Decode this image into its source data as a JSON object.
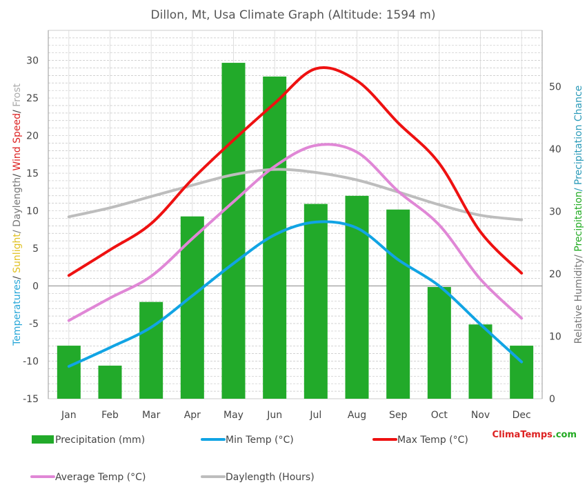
{
  "chart_data": {
    "type": "bar+line",
    "title": "Dillon, Mt, Usa Climate Graph (Altitude: 1594 m)",
    "categories": [
      "Jan",
      "Feb",
      "Mar",
      "Apr",
      "May",
      "Jun",
      "Jul",
      "Aug",
      "Sep",
      "Oct",
      "Nov",
      "Dec"
    ],
    "left_axis": {
      "label_parts": [
        {
          "text": "Temperatures",
          "color": "#26a6d8"
        },
        {
          "text": "/ ",
          "color": "#444444"
        },
        {
          "text": "Sunlight",
          "color": "#e0c020"
        },
        {
          "text": "/ Daylength",
          "color": "#777777"
        },
        {
          "text": "/ ",
          "color": "#444444"
        },
        {
          "text": "Wind Speed",
          "color": "#dd2222"
        },
        {
          "text": "/ ",
          "color": "#444444"
        },
        {
          "text": "Frost",
          "color": "#aaaaaa"
        }
      ],
      "ylim": [
        -15,
        34
      ],
      "ticks": [
        -15,
        -10,
        -5,
        0,
        5,
        10,
        15,
        20,
        25,
        30
      ]
    },
    "right_axis": {
      "label_parts": [
        {
          "text": "Relative Humidity/ ",
          "color": "#777777"
        },
        {
          "text": "Precipitation",
          "color": "#22aa22"
        },
        {
          "text": "/ Precipitation Chance",
          "color": "#2a9ab8"
        }
      ],
      "ylim": [
        0,
        59
      ],
      "ticks": [
        0,
        10,
        20,
        30,
        40,
        50
      ]
    },
    "series": [
      {
        "name": "Precipitation (mm)",
        "kind": "bar",
        "axis": "right",
        "color": "#22aa2a",
        "values": [
          8.5,
          5.3,
          15.5,
          29.2,
          53.8,
          51.6,
          31.2,
          32.5,
          30.3,
          17.9,
          11.9,
          8.5
        ]
      },
      {
        "name": "Min Temp (°C)",
        "kind": "line",
        "axis": "left",
        "color": "#11a4e4",
        "values": [
          -10.7,
          -8.2,
          -5.5,
          -1.3,
          3.0,
          6.8,
          8.5,
          7.7,
          3.5,
          0.0,
          -5.1,
          -10.1
        ]
      },
      {
        "name": "Max Temp (°C)",
        "kind": "line",
        "axis": "left",
        "color": "#ee1111",
        "values": [
          1.4,
          4.8,
          8.3,
          14.2,
          19.4,
          24.3,
          28.9,
          27.3,
          21.7,
          16.3,
          7.2,
          1.7
        ]
      },
      {
        "name": "Average Temp (°C)",
        "kind": "line",
        "axis": "left",
        "color": "#e087d6",
        "values": [
          -4.6,
          -1.6,
          1.3,
          6.3,
          11.2,
          15.9,
          18.7,
          17.8,
          12.6,
          8.1,
          0.9,
          -4.3
        ]
      },
      {
        "name": "Daylength (Hours)",
        "kind": "line",
        "axis": "left",
        "color": "#bdbdbd",
        "values": [
          9.2,
          10.4,
          11.9,
          13.4,
          14.8,
          15.5,
          15.1,
          14.1,
          12.5,
          10.8,
          9.4,
          8.8
        ]
      }
    ],
    "grid": true,
    "legend": "bottom",
    "brand": {
      "part1": "Clima",
      "part2": "Temps",
      "part3": ".com",
      "color1": "#dd2222",
      "color2": "#dd2222",
      "color3": "#22aa22"
    }
  }
}
